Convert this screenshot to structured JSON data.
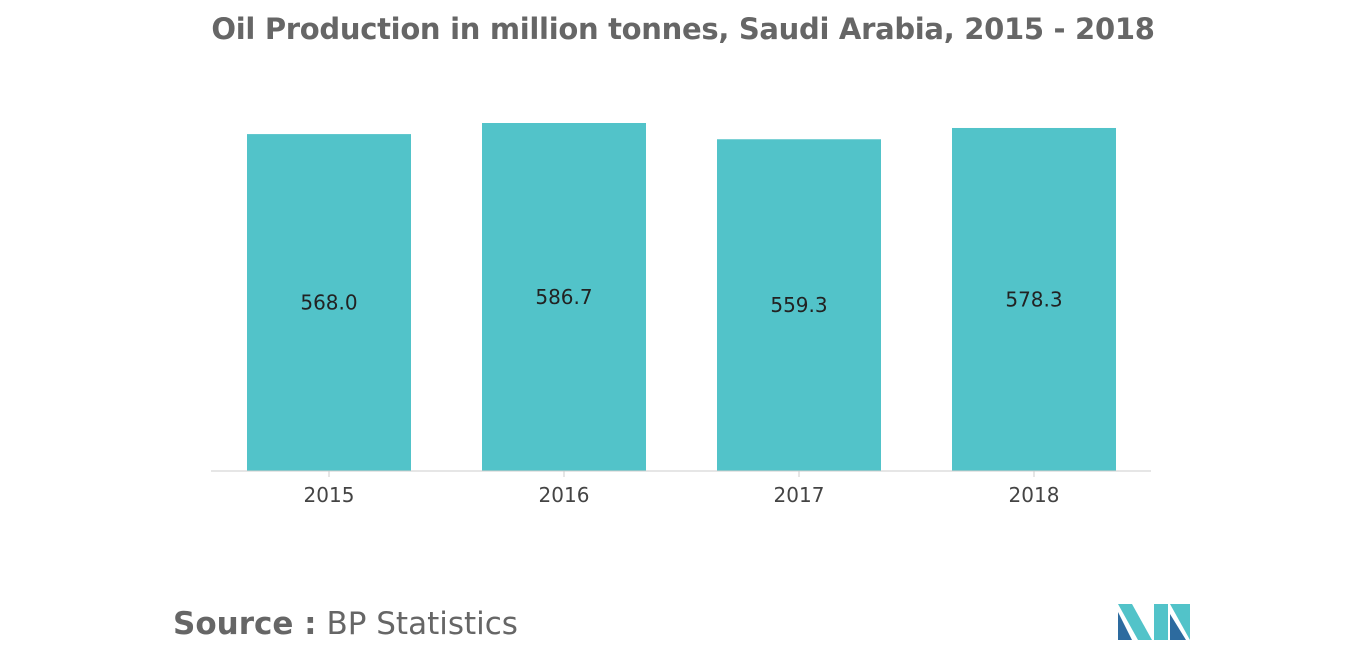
{
  "chart_data": {
    "type": "bar",
    "title": "Oil Production in million tonnes, Saudi Arabia, 2015 - 2018",
    "xlabel": "",
    "ylabel": "",
    "categories": [
      "2015",
      "2016",
      "2017",
      "2018"
    ],
    "values": [
      568.0,
      586.7,
      559.3,
      578.3
    ],
    "data_labels": [
      "568.0",
      "586.7",
      "559.3",
      "578.3"
    ],
    "ylim": [
      0,
      600
    ],
    "grid": false,
    "legend": "none",
    "bar_color": "#52c3c9"
  },
  "source": {
    "prefix": "Source :",
    "text": "BP Statistics"
  },
  "logo": {
    "icon": "mordor-intelligence-logo-icon",
    "colors": [
      "#2d6b9f",
      "#52c3c9"
    ]
  }
}
